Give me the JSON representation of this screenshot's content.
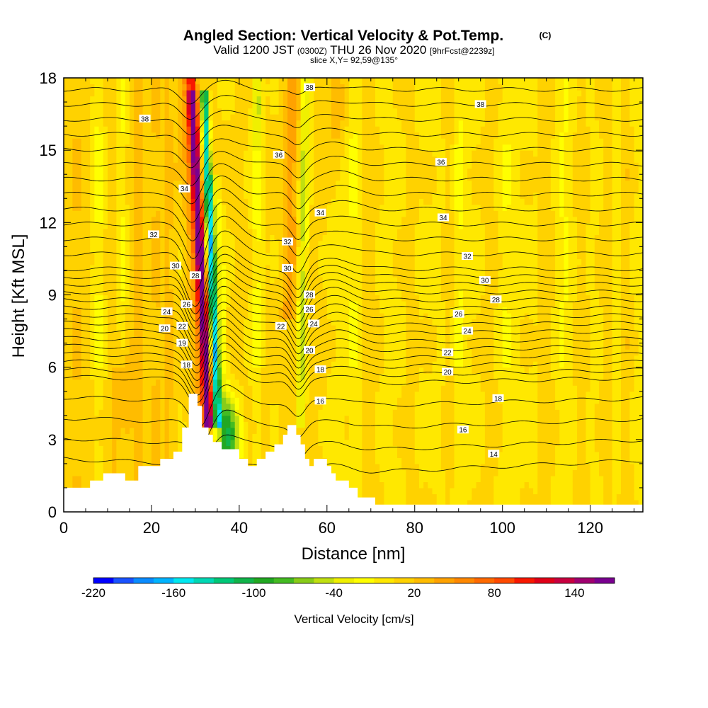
{
  "title": {
    "main": "Angled Section: Vertical Velocity & Pot.Temp.",
    "copyright": "(C)",
    "valid_prefix": "Valid 1200 JST",
    "valid_utc": "(0300Z)",
    "valid_date": "THU 26 Nov 2020",
    "forecast": "[9hrFcst@2239z]",
    "slice": "slice X,Y= 92,59@135°"
  },
  "chart_data": {
    "type": "heatmap",
    "xlabel": "Distance [nm]",
    "ylabel": "Height [Kft MSL]",
    "xlim": [
      0,
      132
    ],
    "ylim": [
      0,
      18
    ],
    "x_ticks": [
      0,
      20,
      40,
      60,
      80,
      100,
      120
    ],
    "y_ticks": [
      0,
      3,
      6,
      9,
      12,
      15,
      18
    ],
    "colorbar": {
      "title": "Vertical Velocity [cm/s]",
      "min": -220,
      "max": 170,
      "step": 15,
      "tick_values": [
        -220,
        -160,
        -100,
        -40,
        20,
        80,
        140
      ],
      "tick_labels": [
        "-220",
        "-160",
        "-100",
        "-40",
        "20",
        "80",
        "140"
      ],
      "colors": [
        "#0000ff",
        "#1a53ff",
        "#0a8cff",
        "#00b4ff",
        "#00e8f0",
        "#00d8b4",
        "#00c878",
        "#11b44a",
        "#22a822",
        "#44bb22",
        "#88cc18",
        "#c0e010",
        "#f0f000",
        "#ffff00",
        "#ffe800",
        "#ffd200",
        "#ffbc00",
        "#ffa200",
        "#ff8800",
        "#ff6a00",
        "#ff4a00",
        "#f81800",
        "#e00018",
        "#c80040",
        "#a00070",
        "#7a0090"
      ]
    },
    "terrain": [
      [
        0,
        1
      ],
      [
        6,
        1
      ],
      [
        6,
        1.3
      ],
      [
        9,
        1.3
      ],
      [
        9,
        1.6
      ],
      [
        14,
        1.6
      ],
      [
        14,
        1.3
      ],
      [
        17,
        1.3
      ],
      [
        17,
        1.9
      ],
      [
        22,
        1.9
      ],
      [
        22,
        2.2
      ],
      [
        25,
        2.2
      ],
      [
        25,
        2.5
      ],
      [
        27,
        2.5
      ],
      [
        27,
        3.5
      ],
      [
        28.5,
        3.5
      ],
      [
        28.5,
        4.9
      ],
      [
        30.5,
        4.9
      ],
      [
        30.5,
        4.4
      ],
      [
        31.5,
        4.4
      ],
      [
        31.5,
        3.5
      ],
      [
        33,
        3.5
      ],
      [
        33,
        3.2
      ],
      [
        34,
        3.2
      ],
      [
        34,
        2.9
      ],
      [
        36,
        2.9
      ],
      [
        36,
        2.6
      ],
      [
        40,
        2.6
      ],
      [
        40,
        2.2
      ],
      [
        42,
        2.2
      ],
      [
        42,
        1.9
      ],
      [
        44,
        1.9
      ],
      [
        44,
        2.2
      ],
      [
        46,
        2.2
      ],
      [
        46,
        2.5
      ],
      [
        48,
        2.5
      ],
      [
        48,
        2.8
      ],
      [
        50,
        2.8
      ],
      [
        50,
        3.2
      ],
      [
        51,
        3.2
      ],
      [
        51,
        3.6
      ],
      [
        53,
        3.6
      ],
      [
        53,
        3.2
      ],
      [
        54,
        3.2
      ],
      [
        54,
        2.8
      ],
      [
        55,
        2.8
      ],
      [
        55,
        2.2
      ],
      [
        56,
        2.2
      ],
      [
        56,
        1.9
      ],
      [
        57,
        1.9
      ],
      [
        57,
        2.2
      ],
      [
        60,
        2.2
      ],
      [
        60,
        1.9
      ],
      [
        61,
        1.9
      ],
      [
        61,
        1.6
      ],
      [
        62,
        1.6
      ],
      [
        62,
        1.3
      ],
      [
        65,
        1.3
      ],
      [
        65,
        1.0
      ],
      [
        67,
        1.0
      ],
      [
        67,
        0.6
      ],
      [
        71,
        0.6
      ],
      [
        71,
        0.3
      ],
      [
        132,
        0.3
      ]
    ],
    "contour_labels": [
      {
        "text": "38",
        "x": 18.5,
        "y": 16.3
      },
      {
        "text": "38",
        "x": 56,
        "y": 17.6
      },
      {
        "text": "38",
        "x": 95,
        "y": 16.9
      },
      {
        "text": "36",
        "x": 49,
        "y": 14.8
      },
      {
        "text": "36",
        "x": 86,
        "y": 14.5
      },
      {
        "text": "34",
        "x": 27.5,
        "y": 13.4
      },
      {
        "text": "34",
        "x": 58.5,
        "y": 12.4
      },
      {
        "text": "34",
        "x": 86.5,
        "y": 12.2
      },
      {
        "text": "32",
        "x": 20.5,
        "y": 11.5
      },
      {
        "text": "32",
        "x": 51,
        "y": 11.2
      },
      {
        "text": "32",
        "x": 92,
        "y": 10.6
      },
      {
        "text": "30",
        "x": 25.5,
        "y": 10.2
      },
      {
        "text": "30",
        "x": 51,
        "y": 10.1
      },
      {
        "text": "30",
        "x": 96,
        "y": 9.6
      },
      {
        "text": "28",
        "x": 30,
        "y": 9.8
      },
      {
        "text": "28",
        "x": 56,
        "y": 9.0
      },
      {
        "text": "28",
        "x": 98.5,
        "y": 8.8
      },
      {
        "text": "26",
        "x": 28,
        "y": 8.6
      },
      {
        "text": "26",
        "x": 56,
        "y": 8.4
      },
      {
        "text": "26",
        "x": 90,
        "y": 8.2
      },
      {
        "text": "24",
        "x": 23.5,
        "y": 8.3
      },
      {
        "text": "24",
        "x": 57,
        "y": 7.8
      },
      {
        "text": "24",
        "x": 92,
        "y": 7.5
      },
      {
        "text": "22",
        "x": 27,
        "y": 7.7
      },
      {
        "text": "22",
        "x": 49.5,
        "y": 7.7
      },
      {
        "text": "22",
        "x": 87.5,
        "y": 6.6
      },
      {
        "text": "20",
        "x": 23,
        "y": 7.6
      },
      {
        "text": "20",
        "x": 56,
        "y": 6.7
      },
      {
        "text": "20",
        "x": 87.5,
        "y": 5.8
      },
      {
        "text": "19",
        "x": 27,
        "y": 7.0
      },
      {
        "text": "18",
        "x": 28,
        "y": 6.1
      },
      {
        "text": "18",
        "x": 58.5,
        "y": 5.9
      },
      {
        "text": "18",
        "x": 99,
        "y": 4.7
      },
      {
        "text": "16",
        "x": 58.5,
        "y": 4.6
      },
      {
        "text": "16",
        "x": 91,
        "y": 3.4
      },
      {
        "text": "14",
        "x": 98,
        "y": 2.4
      }
    ]
  }
}
